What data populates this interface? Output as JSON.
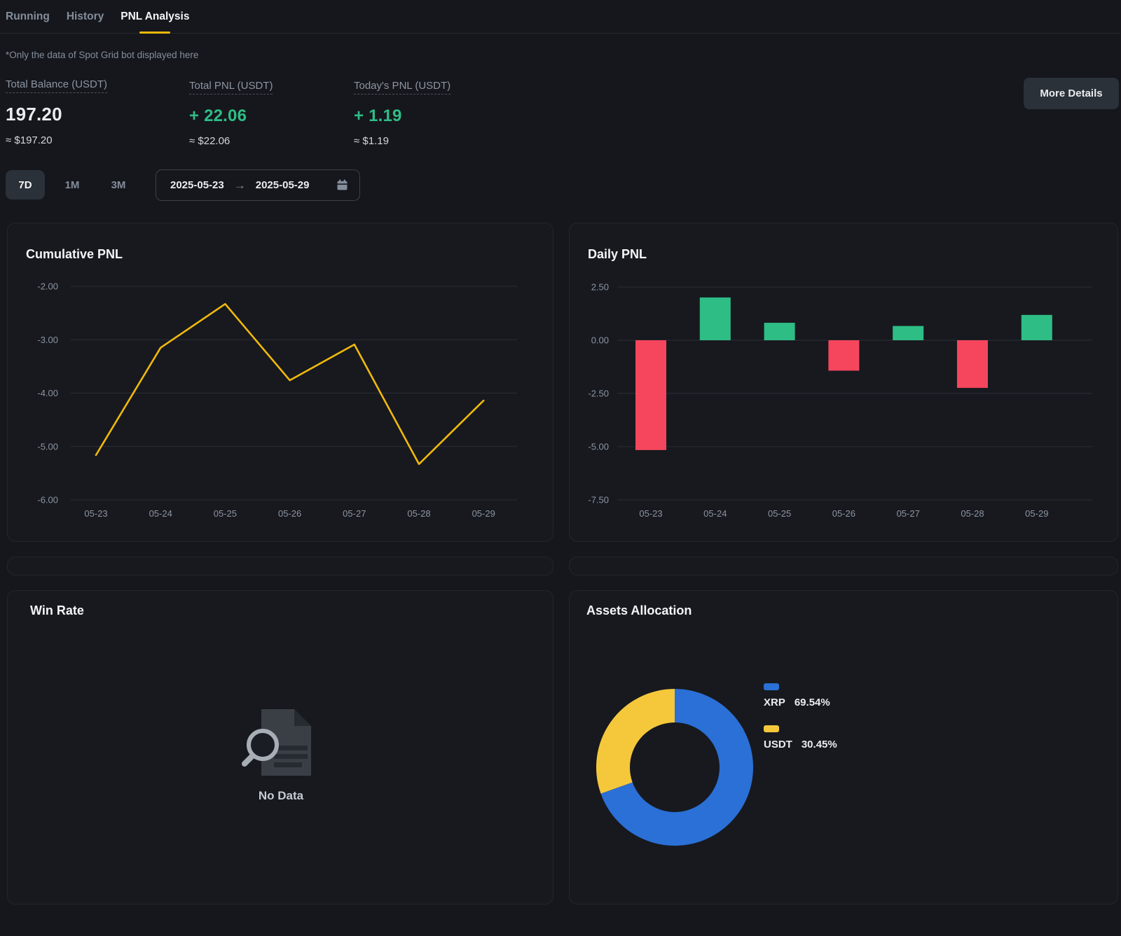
{
  "tabs": {
    "items": [
      {
        "label": "Running",
        "active": false
      },
      {
        "label": "History",
        "active": false
      },
      {
        "label": "PNL Analysis",
        "active": true
      }
    ]
  },
  "note": "*Only the data of Spot Grid bot displayed here",
  "stats": {
    "balance": {
      "label": "Total Balance (USDT)",
      "value": "197.20",
      "approx": "≈ $197.20"
    },
    "total_pnl": {
      "label": "Total PNL (USDT)",
      "value": "+ 22.06",
      "approx": "≈ $22.06"
    },
    "today_pnl": {
      "label": "Today's PNL (USDT)",
      "value": "+ 1.19",
      "approx": "≈ $1.19"
    }
  },
  "more_details_label": "More Details",
  "filters": {
    "ranges": [
      "7D",
      "1M",
      "3M"
    ],
    "active_range": "7D",
    "date_from": "2025-05-23",
    "date_to": "2025-05-29",
    "arrow": "→",
    "calendar_icon": "calendar-icon"
  },
  "panels": {
    "cumulative_title": "Cumulative PNL",
    "daily_title": "Daily PNL",
    "win_rate_title": "Win Rate",
    "win_rate_empty": "No Data",
    "assets_title": "Assets Allocation"
  },
  "assets_legend": [
    {
      "name": "XRP",
      "pct": "69.54%",
      "color": "#2a70d6"
    },
    {
      "name": "USDT",
      "pct": "30.45%",
      "color": "#f5c83b"
    }
  ],
  "colors": {
    "accent_yellow": "#f0b90b",
    "green": "#2ebd85",
    "red": "#f6465d",
    "donut_blue": "#2a70d6",
    "donut_yellow": "#f5c83b",
    "grid": "#2a2d34",
    "tick_text": "#8d95a2"
  },
  "chart_data": [
    {
      "type": "line",
      "title": "Cumulative PNL",
      "x": [
        "05-23",
        "05-24",
        "05-25",
        "05-26",
        "05-27",
        "05-28",
        "05-29"
      ],
      "values": [
        -5.16,
        -3.15,
        -2.33,
        -3.76,
        -3.09,
        -5.33,
        -4.14
      ],
      "yticks": [
        -2.0,
        -3.0,
        -4.0,
        -5.0,
        -6.0
      ],
      "ylim": [
        -6.35,
        -1.8
      ],
      "xlabel": "",
      "ylabel": "",
      "grid": true,
      "legend_position": "none",
      "line_color": "#f0b90b"
    },
    {
      "type": "bar",
      "title": "Daily PNL",
      "x": [
        "05-23",
        "05-24",
        "05-25",
        "05-26",
        "05-27",
        "05-28",
        "05-29"
      ],
      "values": [
        -5.16,
        2.01,
        0.82,
        -1.43,
        0.67,
        -2.24,
        1.19
      ],
      "yticks": [
        2.5,
        0.0,
        -2.5,
        -5.0,
        -7.5
      ],
      "ylim": [
        -8.0,
        3.0
      ],
      "xlabel": "",
      "ylabel": "",
      "grid": true,
      "legend_position": "none",
      "pos_color": "#2ebd85",
      "neg_color": "#f6465d"
    },
    {
      "type": "pie",
      "title": "Assets Allocation",
      "donut": true,
      "slices": [
        {
          "name": "XRP",
          "value": 69.54,
          "color": "#2a70d6"
        },
        {
          "name": "USDT",
          "value": 30.45,
          "color": "#f5c83b"
        }
      ]
    }
  ]
}
